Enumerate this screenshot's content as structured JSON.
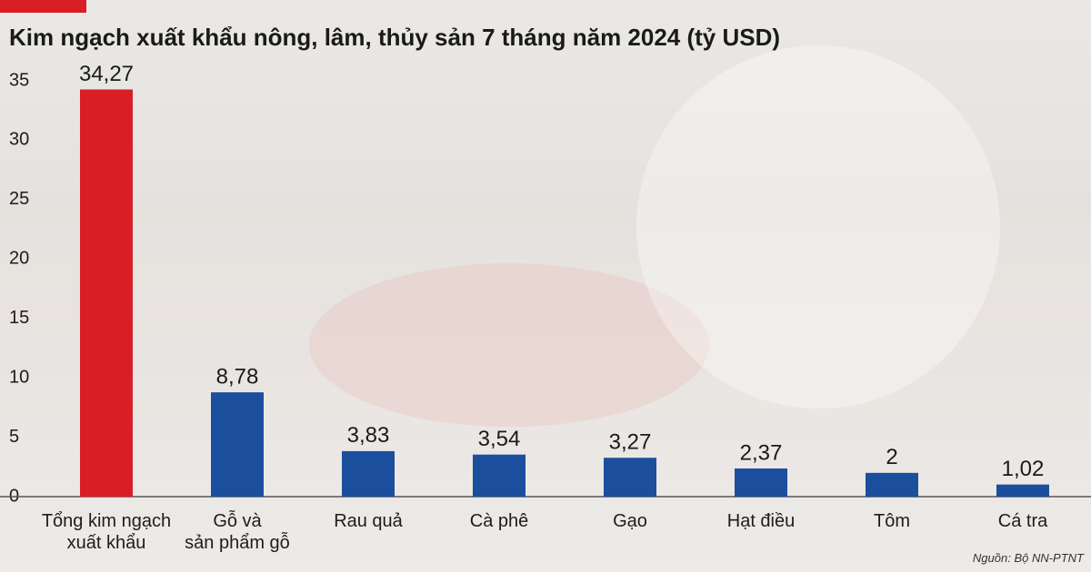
{
  "chart_data": {
    "type": "bar",
    "title": "Kim ngạch xuất khẩu nông, lâm, thủy sản 7 tháng năm 2024 (tỷ USD)",
    "categories": [
      "Tổng kim ngạch\nxuất khẩu",
      "Gỗ và\nsản phẩm gỗ",
      "Rau quả",
      "Cà phê",
      "Gạo",
      "Hạt điều",
      "Tôm",
      "Cá tra"
    ],
    "values": [
      34.27,
      8.78,
      3.83,
      3.54,
      3.27,
      2.37,
      2,
      1.02
    ],
    "value_labels": [
      "34,27",
      "8,78",
      "3,83",
      "3,54",
      "3,27",
      "2,37",
      "2",
      "1,02"
    ],
    "colors": [
      "#d91e25",
      "#1b4f9e",
      "#1b4f9e",
      "#1b4f9e",
      "#1b4f9e",
      "#1b4f9e",
      "#1b4f9e",
      "#1b4f9e"
    ],
    "ylim": [
      0,
      35
    ],
    "yticks": [
      0,
      5,
      10,
      15,
      20,
      25,
      30,
      35
    ],
    "grid": false,
    "source": "Nguồn: Bộ NN-PTNT"
  }
}
